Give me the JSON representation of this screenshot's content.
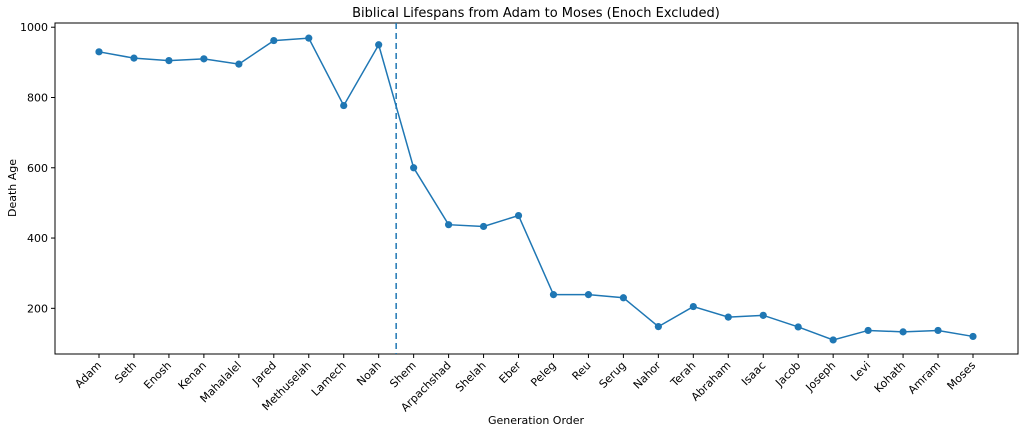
{
  "chart_data": {
    "type": "line",
    "title": "Biblical Lifespans from Adam to Moses (Enoch Excluded)",
    "xlabel": "Generation Order",
    "ylabel": "Death Age",
    "categories": [
      "Adam",
      "Seth",
      "Enosh",
      "Kenan",
      "Mahalalel",
      "Jared",
      "Methuselah",
      "Lamech",
      "Noah",
      "Shem",
      "Arpachshad",
      "Shelah",
      "Eber",
      "Peleg",
      "Reu",
      "Serug",
      "Nahor",
      "Terah",
      "Abraham",
      "Isaac",
      "Jacob",
      "Joseph",
      "Levi",
      "Kohath",
      "Amram",
      "Moses"
    ],
    "series": [
      {
        "values": [
          930,
          912,
          905,
          910,
          895,
          962,
          969,
          777,
          950,
          600,
          438,
          433,
          464,
          239,
          239,
          230,
          148,
          205,
          175,
          180,
          147,
          110,
          137,
          133,
          137,
          120
        ]
      }
    ],
    "ylim": [
      70,
      1012
    ],
    "yticks": [
      200,
      400,
      600,
      800,
      1000
    ],
    "grid": false,
    "divider_line": {
      "style": "dashed",
      "between": [
        "Noah",
        "Shem"
      ]
    },
    "colors": {
      "line": "#1f77b4",
      "axis": "#000000"
    }
  }
}
